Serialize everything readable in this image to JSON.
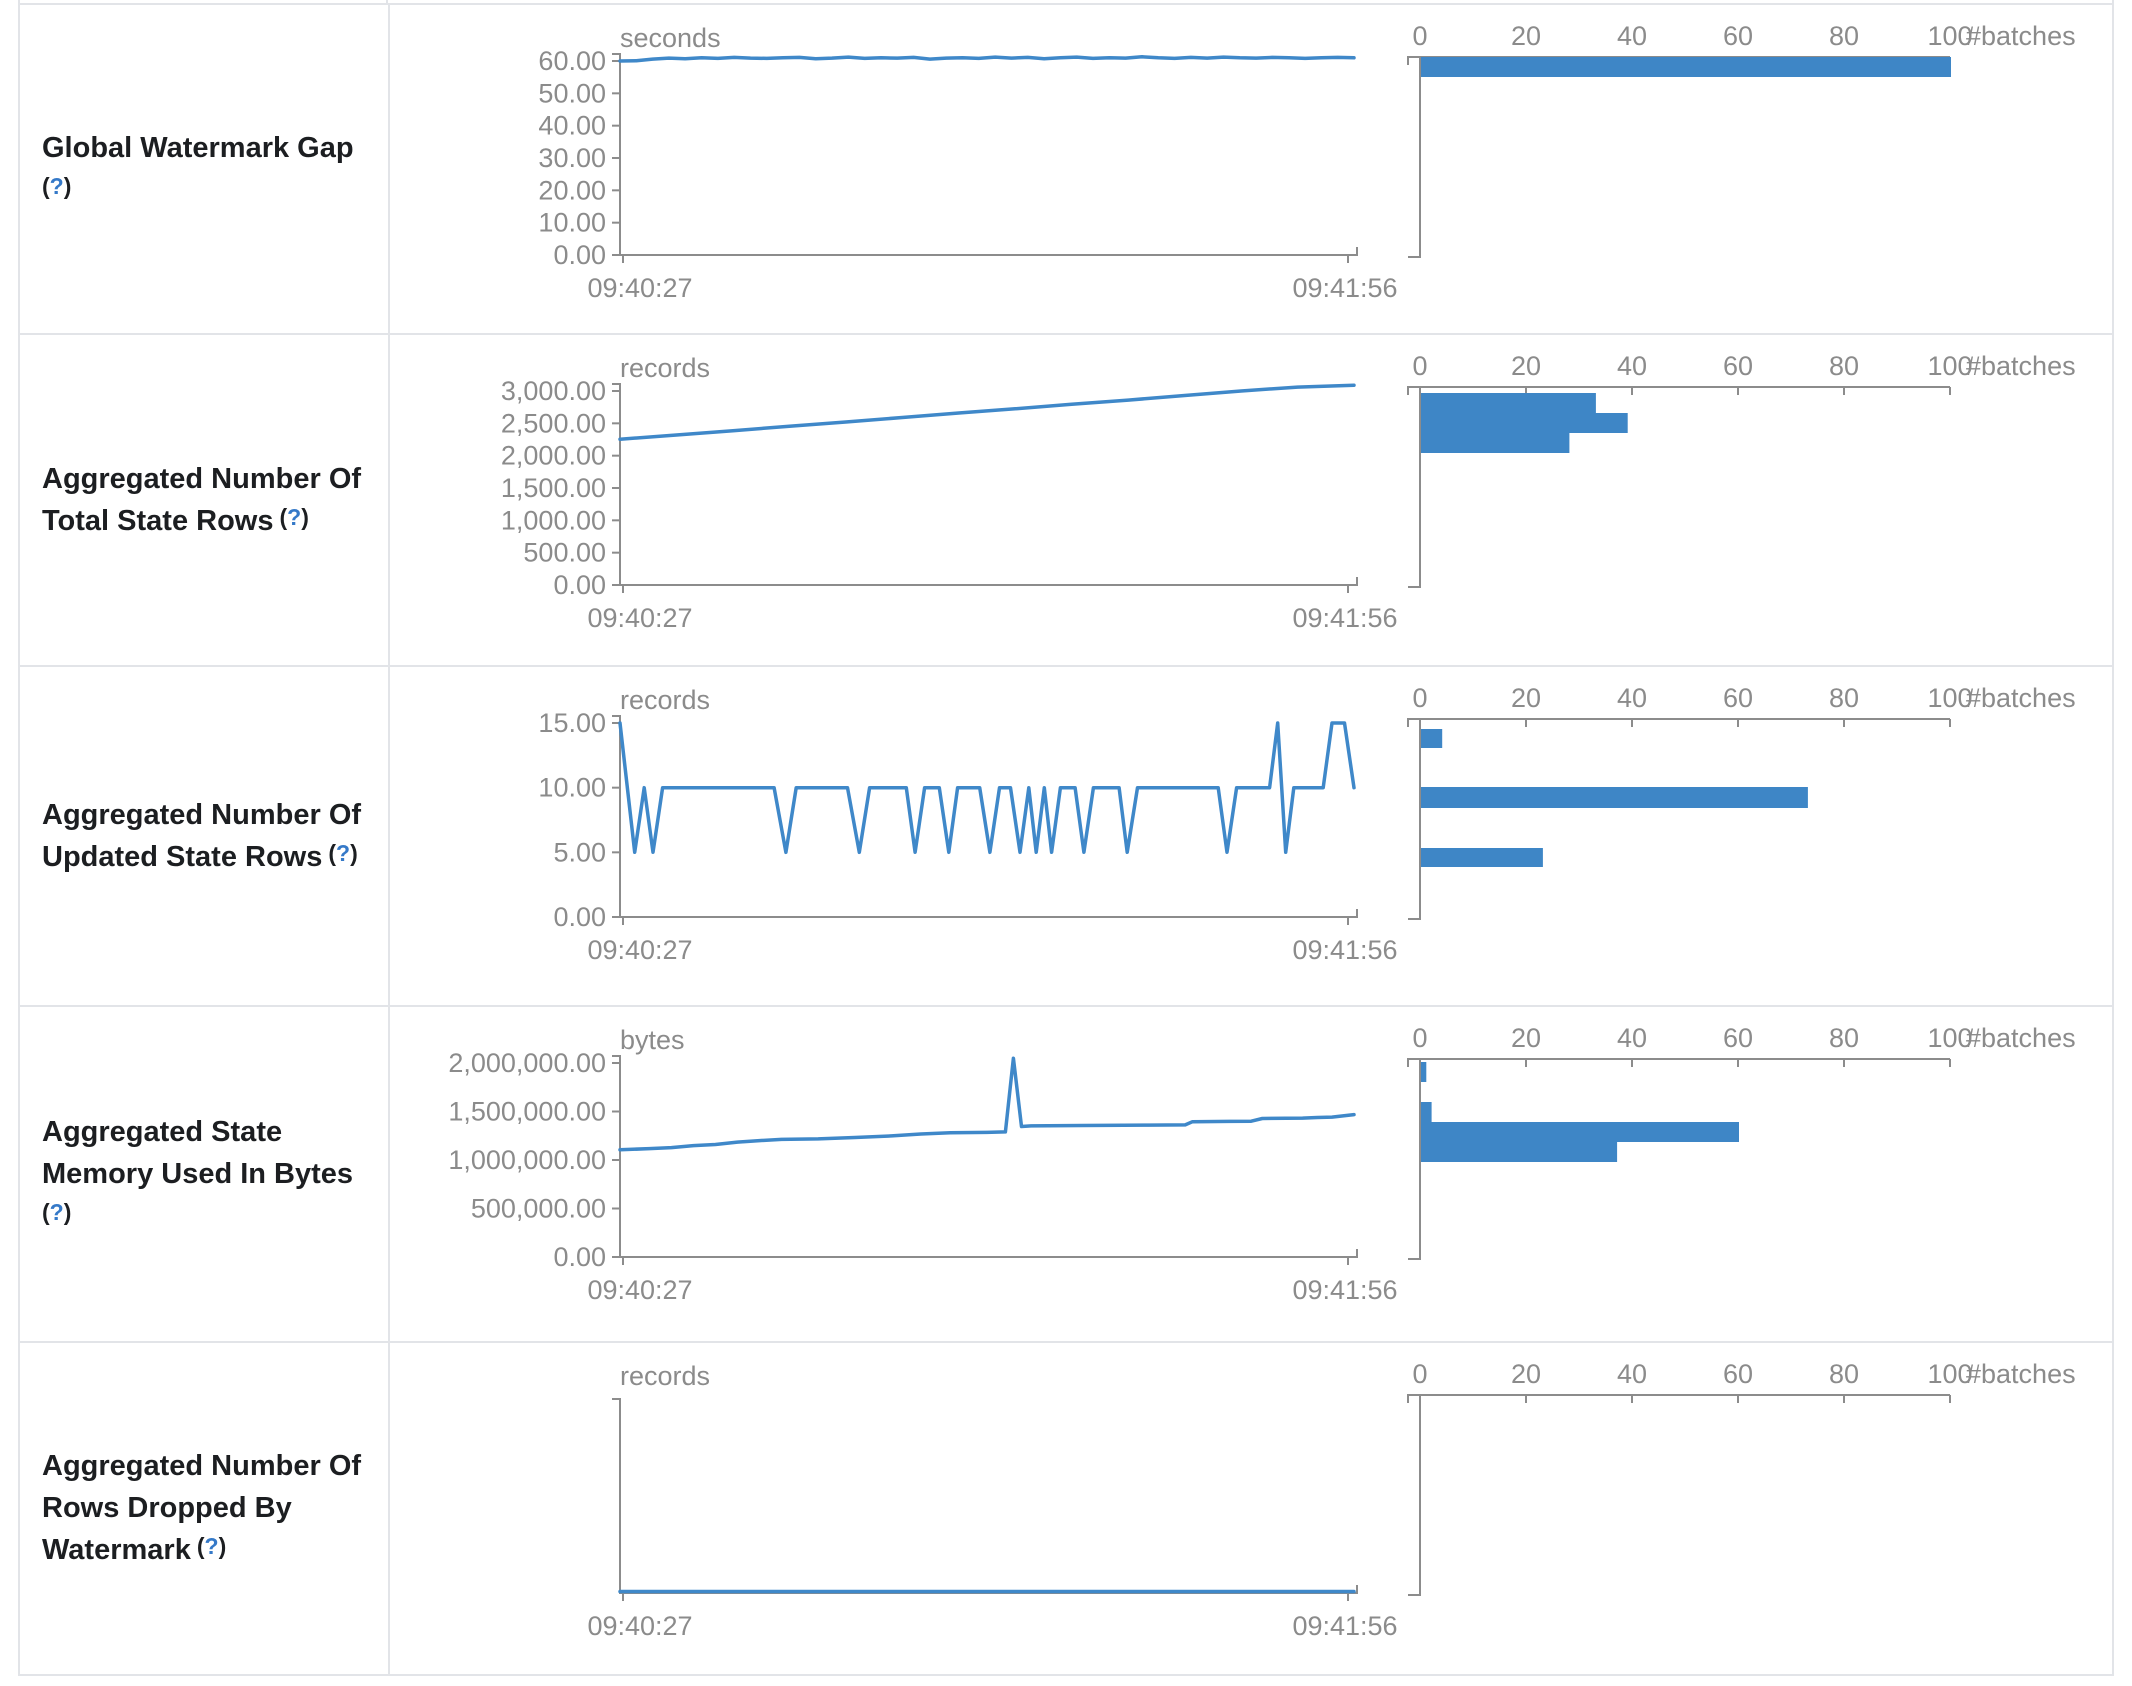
{
  "table": {
    "help_open": "(",
    "help_symbol": "?",
    "help_close": ")"
  },
  "colors": {
    "line_blue": "#3f88c9",
    "bar_blue": "#3e86c6",
    "axis_gray": "#8c8c8c",
    "axis_text_gray": "#8b8b8b",
    "label_dark": "#1c1e21",
    "help_blue": "#3579c8",
    "border_gray": "#e2e4e8"
  },
  "chart_data": [
    {
      "metric": "Global Watermark Gap",
      "metric_lines": [
        "Global Watermark Gap"
      ],
      "timeline": {
        "type": "line",
        "unit": "seconds",
        "x_labels": [
          "09:40:27",
          "09:41:56"
        ],
        "ylim": [
          0,
          60
        ],
        "yticks": [
          {
            "value": 60,
            "label": "60.00"
          },
          {
            "value": 50,
            "label": "50.00"
          },
          {
            "value": 40,
            "label": "40.00"
          },
          {
            "value": 30,
            "label": "30.00"
          },
          {
            "value": 20,
            "label": "20.00"
          },
          {
            "value": 10,
            "label": "10.00"
          },
          {
            "value": 0,
            "label": "0.00"
          }
        ],
        "values": [
          60.0,
          60.1,
          60.6,
          60.9,
          60.7,
          61.0,
          60.8,
          61.1,
          60.9,
          60.8,
          61.0,
          61.1,
          60.7,
          60.9,
          61.2,
          60.8,
          61.0,
          60.9,
          61.1,
          60.6,
          60.9,
          61.0,
          60.8,
          61.2,
          60.9,
          61.1,
          60.7,
          61.0,
          61.2,
          60.8,
          61.0,
          60.9,
          61.3,
          61.0,
          60.8,
          61.1,
          60.9,
          61.2,
          61.0,
          60.9,
          61.1,
          61.0,
          60.8,
          61.0,
          61.1,
          61.0
        ]
      },
      "histogram": {
        "type": "bar",
        "xlabel": "#batches",
        "xlim": [
          0,
          100
        ],
        "ticks": [
          "0",
          "20",
          "40",
          "60",
          "80",
          "100"
        ],
        "bins": [
          {
            "value": 61,
            "count": 100,
            "y": 52,
            "h": 20
          }
        ]
      }
    },
    {
      "metric": "Aggregated Number Of Total State Rows",
      "metric_lines": [
        "Aggregated Number Of",
        "Total State Rows"
      ],
      "timeline": {
        "type": "line",
        "unit": "records",
        "x_labels": [
          "09:40:27",
          "09:41:56"
        ],
        "ylim": [
          0,
          3000
        ],
        "yticks": [
          {
            "value": 3000,
            "label": "3,000.00"
          },
          {
            "value": 2500,
            "label": "2,500.00"
          },
          {
            "value": 2000,
            "label": "2,000.00"
          },
          {
            "value": 1500,
            "label": "1,500.00"
          },
          {
            "value": 1000,
            "label": "1,000.00"
          },
          {
            "value": 500,
            "label": "500.00"
          },
          {
            "value": 0,
            "label": "0.00"
          }
        ],
        "values": [
          2255,
          2320,
          2385,
          2455,
          2520,
          2590,
          2660,
          2725,
          2795,
          2860,
          2930,
          3000,
          3060,
          3090
        ]
      },
      "histogram": {
        "type": "bar",
        "xlabel": "#batches",
        "xlim": [
          0,
          100
        ],
        "ticks": [
          "0",
          "20",
          "40",
          "60",
          "80",
          "100"
        ],
        "bins": [
          {
            "value": 2960,
            "count": 33,
            "y": 58,
            "h": 20
          },
          {
            "value": 2650,
            "count": 39,
            "y": 78,
            "h": 20
          },
          {
            "value": 2340,
            "count": 28,
            "y": 98,
            "h": 20
          }
        ]
      }
    },
    {
      "metric": "Aggregated Number Of Updated State Rows",
      "metric_lines": [
        "Aggregated Number Of",
        "Updated State Rows"
      ],
      "timeline": {
        "type": "line",
        "unit": "records",
        "x_labels": [
          "09:40:27",
          "09:41:56"
        ],
        "ylim": [
          0,
          15
        ],
        "yticks": [
          {
            "value": 15,
            "label": "15.00"
          },
          {
            "value": 10,
            "label": "10.00"
          },
          {
            "value": 5,
            "label": "5.00"
          },
          {
            "value": 0,
            "label": "0.00"
          }
        ],
        "points": [
          [
            0,
            15
          ],
          [
            0.02,
            5
          ],
          [
            0.033,
            10
          ],
          [
            0.045,
            5
          ],
          [
            0.058,
            10
          ],
          [
            0.21,
            10
          ],
          [
            0.226,
            5
          ],
          [
            0.24,
            10
          ],
          [
            0.31,
            10
          ],
          [
            0.326,
            5
          ],
          [
            0.34,
            10
          ],
          [
            0.39,
            10
          ],
          [
            0.402,
            5
          ],
          [
            0.415,
            10
          ],
          [
            0.435,
            10
          ],
          [
            0.448,
            5
          ],
          [
            0.46,
            10
          ],
          [
            0.49,
            10
          ],
          [
            0.504,
            5
          ],
          [
            0.517,
            10
          ],
          [
            0.532,
            10
          ],
          [
            0.545,
            5
          ],
          [
            0.557,
            10
          ],
          [
            0.567,
            5
          ],
          [
            0.578,
            10
          ],
          [
            0.588,
            5
          ],
          [
            0.6,
            10
          ],
          [
            0.62,
            10
          ],
          [
            0.632,
            5
          ],
          [
            0.645,
            10
          ],
          [
            0.68,
            10
          ],
          [
            0.691,
            5
          ],
          [
            0.705,
            10
          ],
          [
            0.815,
            10
          ],
          [
            0.827,
            5
          ],
          [
            0.84,
            10
          ],
          [
            0.885,
            10
          ],
          [
            0.896,
            15
          ],
          [
            0.907,
            5
          ],
          [
            0.918,
            10
          ],
          [
            0.958,
            10
          ],
          [
            0.97,
            15
          ],
          [
            0.987,
            15
          ],
          [
            1,
            10
          ]
        ]
      },
      "histogram": {
        "type": "bar",
        "xlabel": "#batches",
        "xlim": [
          0,
          100
        ],
        "ticks": [
          "0",
          "20",
          "40",
          "60",
          "80",
          "100"
        ],
        "bins": [
          {
            "value": 15,
            "count": 4,
            "y": 62,
            "h": 19
          },
          {
            "value": 10,
            "count": 73,
            "y": 120,
            "h": 21
          },
          {
            "value": 5,
            "count": 23,
            "y": 181,
            "h": 19
          }
        ]
      }
    },
    {
      "metric": "Aggregated State Memory Used In Bytes",
      "metric_lines": [
        "Aggregated State",
        "Memory Used In Bytes"
      ],
      "timeline": {
        "type": "line",
        "unit": "bytes",
        "x_labels": [
          "09:40:27",
          "09:41:56"
        ],
        "ylim": [
          0,
          2000000
        ],
        "yticks": [
          {
            "value": 2000000,
            "label": "2,000,000.00"
          },
          {
            "value": 1500000,
            "label": "1,500,000.00"
          },
          {
            "value": 1000000,
            "label": "1,000,000.00"
          },
          {
            "value": 500000,
            "label": "500,000.00"
          },
          {
            "value": 0,
            "label": "0.00"
          }
        ],
        "points": [
          [
            0,
            1105000
          ],
          [
            0.04,
            1118000
          ],
          [
            0.07,
            1128000
          ],
          [
            0.1,
            1148000
          ],
          [
            0.13,
            1160000
          ],
          [
            0.16,
            1185000
          ],
          [
            0.19,
            1200000
          ],
          [
            0.22,
            1212000
          ],
          [
            0.27,
            1218000
          ],
          [
            0.32,
            1232000
          ],
          [
            0.37,
            1248000
          ],
          [
            0.41,
            1268000
          ],
          [
            0.45,
            1280000
          ],
          [
            0.5,
            1285000
          ],
          [
            0.525,
            1290000
          ],
          [
            0.536,
            2050000
          ],
          [
            0.547,
            1345000
          ],
          [
            0.56,
            1352000
          ],
          [
            0.63,
            1356000
          ],
          [
            0.72,
            1360000
          ],
          [
            0.77,
            1362000
          ],
          [
            0.78,
            1395000
          ],
          [
            0.83,
            1398000
          ],
          [
            0.86,
            1400000
          ],
          [
            0.875,
            1428000
          ],
          [
            0.93,
            1432000
          ],
          [
            0.95,
            1438000
          ],
          [
            0.97,
            1442000
          ],
          [
            0.985,
            1455000
          ],
          [
            1,
            1468000
          ]
        ]
      },
      "histogram": {
        "type": "bar",
        "xlabel": "#batches",
        "xlim": [
          0,
          100
        ],
        "ticks": [
          "0",
          "20",
          "40",
          "60",
          "80",
          "100"
        ],
        "bins": [
          {
            "value": 2000000,
            "count": 1,
            "y": 55,
            "h": 20
          },
          {
            "value": 1600000,
            "count": 2,
            "y": 95,
            "h": 20
          },
          {
            "value": 1400000,
            "count": 60,
            "y": 115,
            "h": 20
          },
          {
            "value": 1200000,
            "count": 37,
            "y": 135,
            "h": 20
          }
        ]
      }
    },
    {
      "metric": "Aggregated Number Of Rows Dropped By Watermark",
      "metric_lines": [
        "Aggregated Number Of",
        "Rows Dropped By",
        "Watermark"
      ],
      "timeline": {
        "type": "line",
        "unit": "records",
        "x_labels": [
          "09:40:27",
          "09:41:56"
        ],
        "ylim": null,
        "yticks": [],
        "values": [
          0,
          0
        ]
      },
      "histogram": {
        "type": "bar",
        "xlabel": "#batches",
        "xlim": [
          0,
          100
        ],
        "ticks": [
          "0",
          "20",
          "40",
          "60",
          "80",
          "100"
        ],
        "bins": []
      }
    }
  ]
}
